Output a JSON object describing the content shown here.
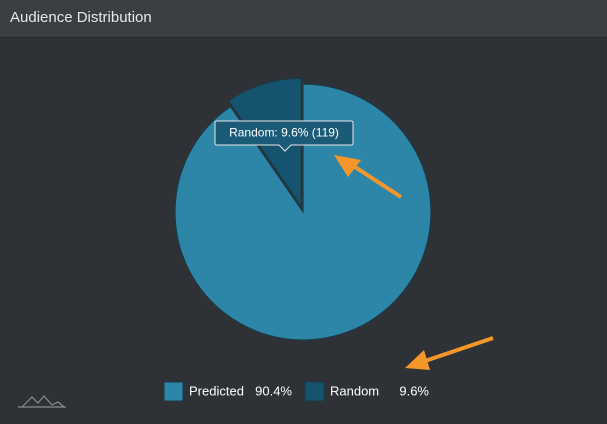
{
  "chart_data": {
    "type": "pie",
    "title": "Audience Distribution",
    "categories": [
      "Predicted",
      "Random"
    ],
    "values": [
      90.4,
      9.6
    ],
    "value_labels": [
      "90.4%",
      "9.6%"
    ],
    "colors": [
      "#2d86a8",
      "#15536f"
    ],
    "tooltip": "Random: 9.6% (119)"
  }
}
